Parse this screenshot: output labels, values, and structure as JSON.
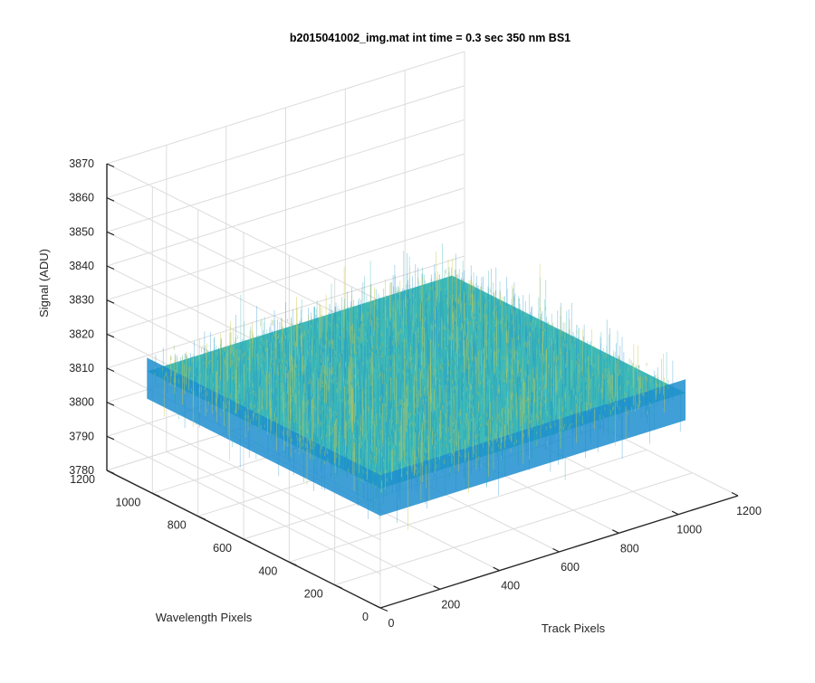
{
  "chart_data": {
    "type": "surface",
    "title": "b2015041002_img.mat int time = 0.3 sec  350 nm BS1",
    "xlabel": "Track Pixels",
    "ylabel": "Wavelength Pixels",
    "zlabel": "Signal (ADU)",
    "xlim": [
      0,
      1200
    ],
    "ylim": [
      0,
      1200
    ],
    "zlim": [
      3780,
      3870
    ],
    "x_ticks": [
      "0",
      "200",
      "400",
      "600",
      "800",
      "1000",
      "1200"
    ],
    "y_ticks": [
      "0",
      "200",
      "400",
      "600",
      "800",
      "1000",
      "1200"
    ],
    "z_ticks": [
      "3780",
      "3790",
      "3800",
      "3810",
      "3820",
      "3830",
      "3840",
      "3850",
      "3860",
      "3870"
    ],
    "grid": true,
    "colormap": "parula",
    "surface": {
      "x_range": [
        0,
        1024
      ],
      "y_range": [
        0,
        1024
      ],
      "signal_mean": 3815,
      "signal_range": [
        3790,
        3845
      ]
    },
    "colors": {
      "low": "#1f8ecf",
      "mid": "#2bb3b0",
      "high": "#c7c850",
      "axis": "#262626",
      "grid": "#dcdcdc"
    }
  }
}
